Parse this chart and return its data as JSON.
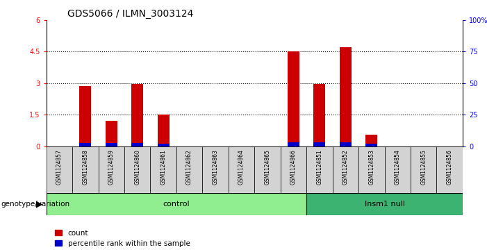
{
  "title": "GDS5066 / ILMN_3003124",
  "samples": [
    "GSM1124857",
    "GSM1124858",
    "GSM1124859",
    "GSM1124860",
    "GSM1124861",
    "GSM1124862",
    "GSM1124863",
    "GSM1124864",
    "GSM1124865",
    "GSM1124866",
    "GSM1124851",
    "GSM1124852",
    "GSM1124853",
    "GSM1124854",
    "GSM1124855",
    "GSM1124856"
  ],
  "count_values": [
    0,
    2.85,
    1.2,
    2.95,
    1.5,
    0,
    0,
    0,
    0,
    4.5,
    2.95,
    4.7,
    0.55,
    0,
    0,
    0
  ],
  "percentile_values": [
    0,
    0.15,
    0.15,
    0.15,
    0.12,
    0,
    0,
    0,
    0,
    0.18,
    0.18,
    0.18,
    0.12,
    0,
    0,
    0
  ],
  "groups": [
    {
      "label": "control",
      "start": 0,
      "end": 10,
      "color": "#90EE90"
    },
    {
      "label": "Insm1 null",
      "start": 10,
      "end": 16,
      "color": "#3CB371"
    }
  ],
  "ylim_left": [
    0,
    6
  ],
  "ylim_right": [
    0,
    100
  ],
  "yticks_left": [
    0,
    1.5,
    3.0,
    4.5,
    6.0
  ],
  "ytick_labels_left": [
    "0",
    "1.5",
    "3",
    "4.5",
    "6"
  ],
  "yticks_right": [
    0,
    25,
    50,
    75,
    100
  ],
  "ytick_labels_right": [
    "0",
    "25",
    "50",
    "75",
    "100%"
  ],
  "bar_color_count": "#cc0000",
  "bar_color_percentile": "#0000cc",
  "sample_bg_color": "#d3d3d3",
  "genotype_label": "genotype/variation",
  "legend_count": "count",
  "legend_percentile": "percentile rank within the sample",
  "title_fontsize": 10,
  "tick_fontsize": 7,
  "sample_fontsize": 5.5,
  "geno_fontsize": 8,
  "legend_fontsize": 7.5,
  "dotted_lines": [
    1.5,
    3.0,
    4.5
  ],
  "control_color": "#90EE90",
  "insm1_color": "#3CB371"
}
